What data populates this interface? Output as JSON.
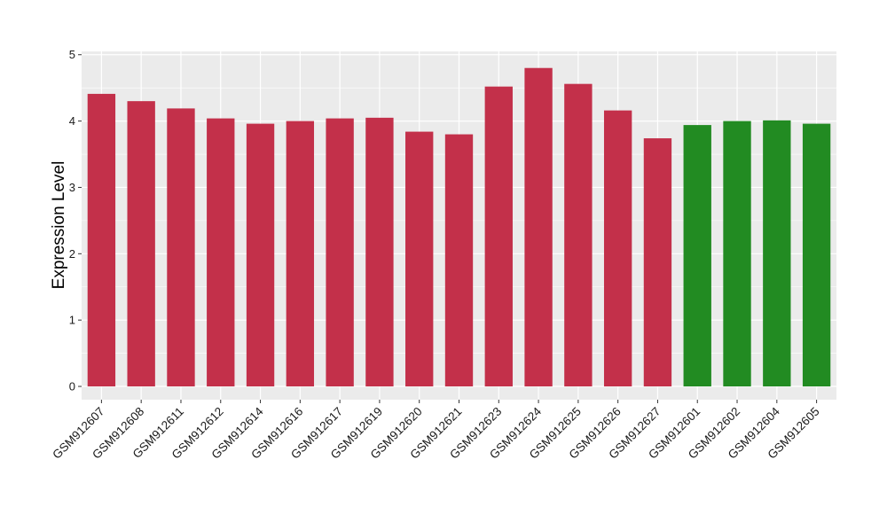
{
  "chart_data": {
    "type": "bar",
    "title": "",
    "xlabel": "",
    "ylabel": "Expression Level",
    "ylim": [
      -0.2,
      5.05
    ],
    "yticks": [
      0,
      1,
      2,
      3,
      4,
      5
    ],
    "grid": true,
    "legend": "none",
    "categories": [
      "GSM912607",
      "GSM912608",
      "GSM912611",
      "GSM912612",
      "GSM912614",
      "GSM912616",
      "GSM912617",
      "GSM912619",
      "GSM912620",
      "GSM912621",
      "GSM912623",
      "GSM912624",
      "GSM912625",
      "GSM912626",
      "GSM912627",
      "GSM912601",
      "GSM912602",
      "GSM912604",
      "GSM912605"
    ],
    "values": [
      4.41,
      4.3,
      4.19,
      4.04,
      3.96,
      4.0,
      4.04,
      4.05,
      3.84,
      3.8,
      4.52,
      4.8,
      4.56,
      4.16,
      3.74,
      3.94,
      4.0,
      4.01,
      3.96
    ],
    "groups": [
      "a",
      "a",
      "a",
      "a",
      "a",
      "a",
      "a",
      "a",
      "a",
      "a",
      "a",
      "a",
      "a",
      "a",
      "a",
      "b",
      "b",
      "b",
      "b"
    ],
    "group_colors": {
      "a": "#c3304a",
      "b": "#228b22"
    },
    "panel_background": "#ebebeb",
    "grid_color": "#ffffff"
  }
}
